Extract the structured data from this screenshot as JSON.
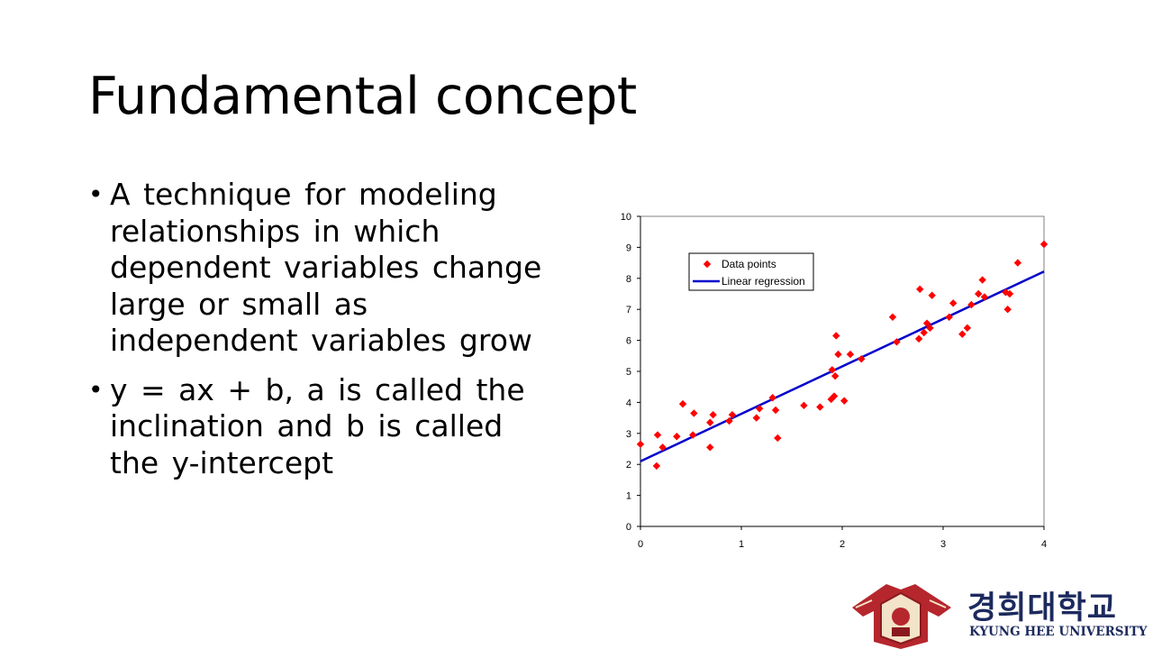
{
  "slide": {
    "title": "Fundamental concept",
    "bullets": [
      {
        "glyph": "•",
        "text": "A technique for modeling relationships in which dependent variables change large or small as independent variables grow"
      },
      {
        "glyph": "•",
        "text": "y = ax + b, a is called the inclination and b is called the y-intercept"
      }
    ]
  },
  "logo": {
    "korean": "경희대학교",
    "english": "KYUNG HEE UNIVERSITY",
    "colors": {
      "emblem": "#b5272d",
      "text": "#1c2a5e"
    }
  },
  "chart_data": {
    "type": "scatter",
    "xlim": [
      0,
      4
    ],
    "ylim": [
      0,
      10
    ],
    "x_ticks": [
      "0",
      "1",
      "2",
      "3",
      "4"
    ],
    "y_ticks": [
      "0",
      "1",
      "2",
      "3",
      "4",
      "5",
      "6",
      "7",
      "8",
      "9",
      "10"
    ],
    "grid": false,
    "legend_position": "top-left",
    "series": [
      {
        "name": "Data points",
        "kind": "scatter",
        "marker": "diamond",
        "color": "#ff0000",
        "points": [
          [
            0.0,
            2.65
          ],
          [
            0.16,
            1.95
          ],
          [
            0.17,
            2.95
          ],
          [
            0.22,
            2.55
          ],
          [
            0.36,
            2.9
          ],
          [
            0.42,
            3.95
          ],
          [
            0.52,
            2.95
          ],
          [
            0.53,
            3.65
          ],
          [
            0.69,
            3.35
          ],
          [
            0.69,
            2.55
          ],
          [
            0.72,
            3.6
          ],
          [
            0.88,
            3.4
          ],
          [
            0.91,
            3.6
          ],
          [
            1.15,
            3.5
          ],
          [
            1.18,
            3.8
          ],
          [
            1.31,
            4.15
          ],
          [
            1.34,
            3.75
          ],
          [
            1.36,
            2.85
          ],
          [
            1.62,
            3.9
          ],
          [
            1.78,
            3.85
          ],
          [
            1.89,
            4.1
          ],
          [
            1.9,
            5.05
          ],
          [
            1.92,
            4.2
          ],
          [
            1.93,
            4.85
          ],
          [
            1.94,
            6.15
          ],
          [
            1.96,
            5.55
          ],
          [
            2.02,
            4.05
          ],
          [
            2.08,
            5.55
          ],
          [
            2.19,
            5.4
          ],
          [
            2.5,
            6.75
          ],
          [
            2.54,
            5.95
          ],
          [
            2.76,
            6.05
          ],
          [
            2.77,
            7.65
          ],
          [
            2.81,
            6.25
          ],
          [
            2.84,
            6.55
          ],
          [
            2.87,
            6.4
          ],
          [
            2.89,
            7.45
          ],
          [
            3.06,
            6.75
          ],
          [
            3.1,
            7.2
          ],
          [
            3.19,
            6.2
          ],
          [
            3.24,
            6.4
          ],
          [
            3.28,
            7.15
          ],
          [
            3.35,
            7.5
          ],
          [
            3.39,
            7.95
          ],
          [
            3.41,
            7.4
          ],
          [
            3.62,
            7.55
          ],
          [
            3.64,
            7.0
          ],
          [
            3.66,
            7.5
          ],
          [
            3.74,
            8.5
          ],
          [
            4.0,
            9.1
          ]
        ]
      },
      {
        "name": "Linear regression",
        "kind": "line",
        "color": "#0000cc",
        "points": [
          [
            0,
            2.1
          ],
          [
            4,
            8.22
          ]
        ]
      }
    ]
  }
}
